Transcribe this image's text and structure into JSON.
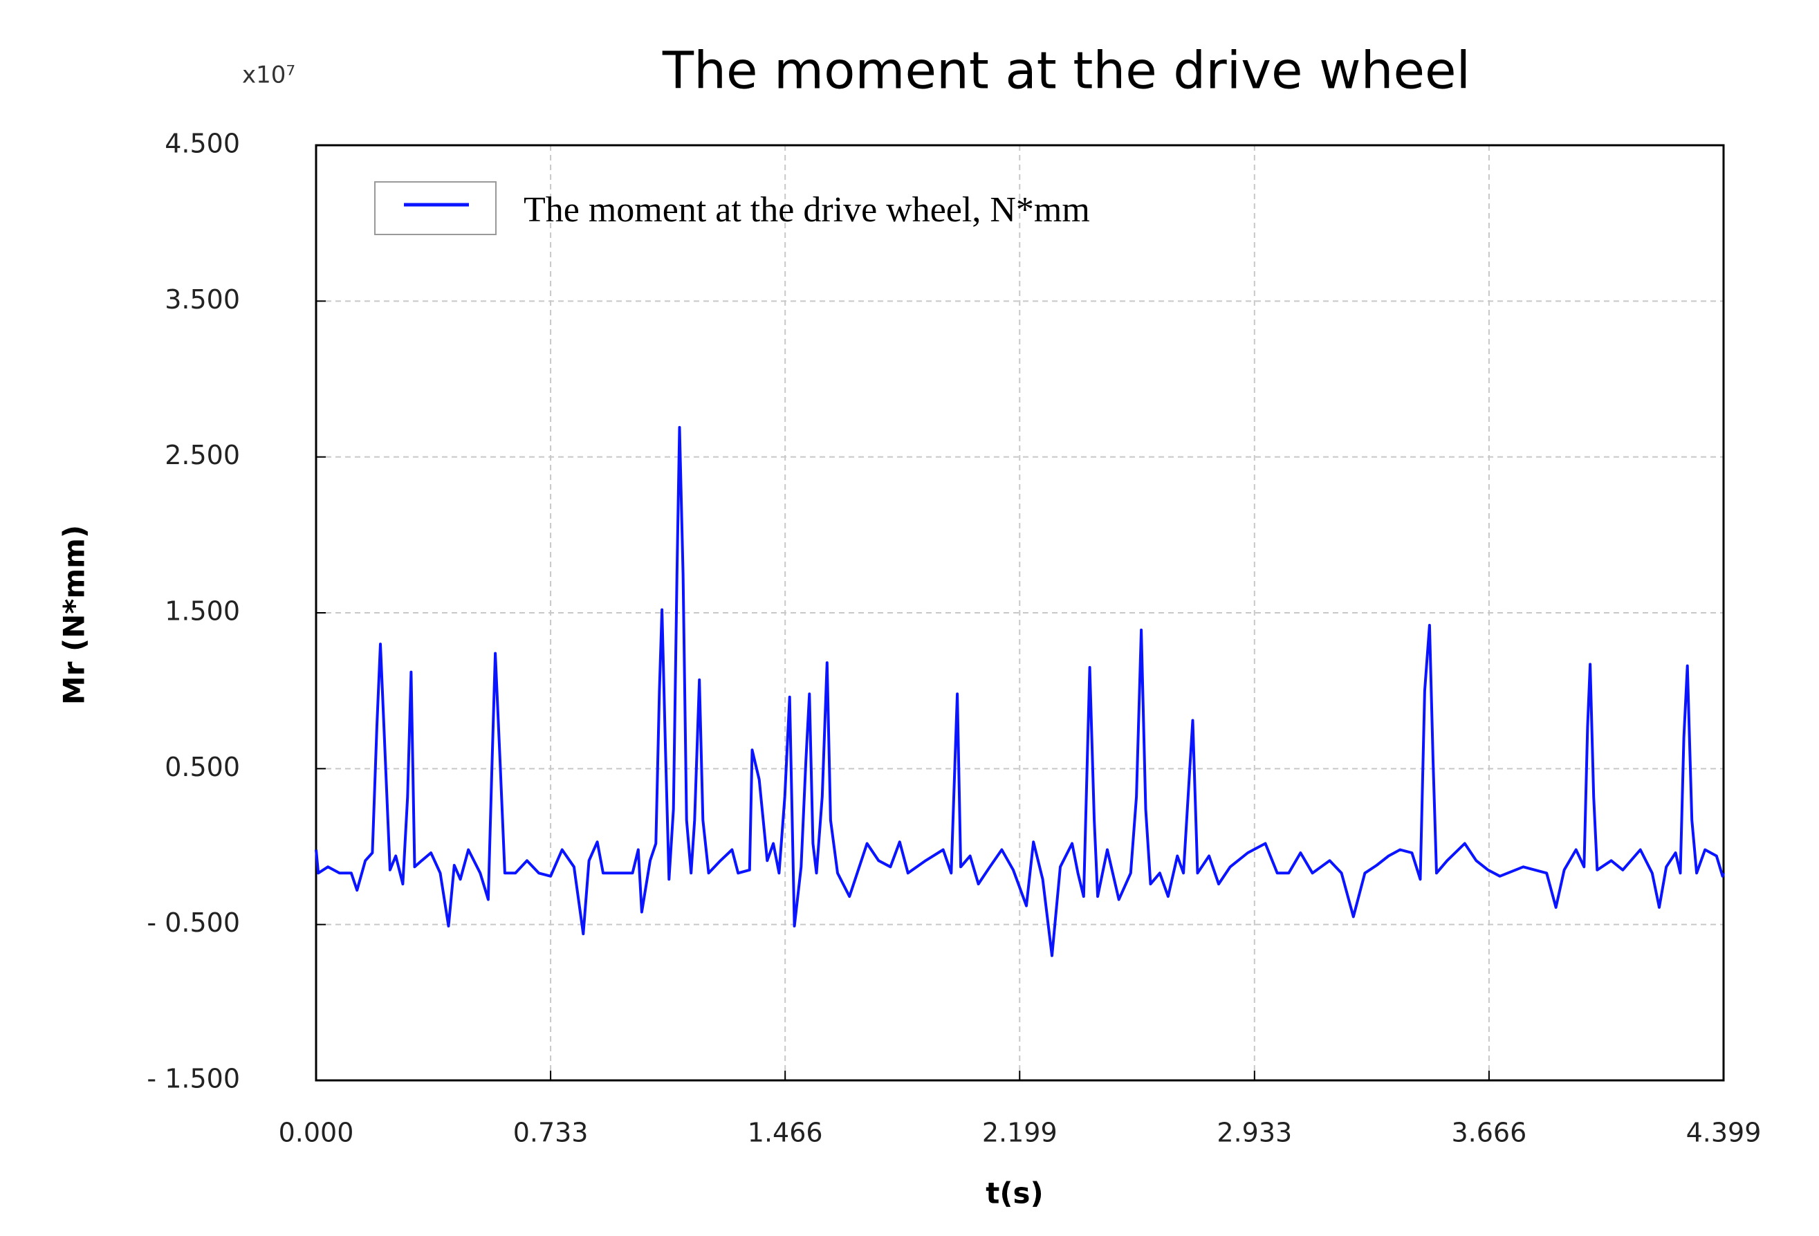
{
  "chart_data": {
    "type": "line",
    "title": "The moment at the drive wheel",
    "y_scale_label": "x10⁷",
    "x_label": "t(s)",
    "y_label": "Mr (N*mm)",
    "grid": true,
    "legend": "top-left",
    "xlim": [
      0,
      4.399
    ],
    "xticks": [
      {
        "value": 0,
        "label": "0.000"
      },
      0.733,
      1.466,
      2.199,
      2.933,
      3.666,
      4.399
    ],
    "ylim": [
      -1.5,
      4.5
    ],
    "yticks": [
      {
        "value": 4.5,
        "label": "4.500"
      },
      {
        "value": 3.5,
        "label": "3.500"
      },
      {
        "value": 2.5,
        "label": "2.500"
      },
      {
        "value": 1.5,
        "label": "1.500"
      },
      {
        "value": 0.5,
        "label": "0.500"
      },
      {
        "value": -0.5,
        "label": "- 0.500"
      },
      {
        "value": -1.5,
        "label": "- 1.500"
      }
    ],
    "series": [
      {
        "name": "The moment at the drive wheel, N*mm",
        "color": "#0a14ff",
        "x": [
          0,
          0.007,
          0.037,
          0.073,
          0.11,
          0.128,
          0.154,
          0.176,
          0.19,
          0.201,
          0.212,
          0.231,
          0.249,
          0.271,
          0.286,
          0.297,
          0.308,
          0.33,
          0.359,
          0.388,
          0.414,
          0.432,
          0.451,
          0.476,
          0.513,
          0.538,
          0.549,
          0.56,
          0.575,
          0.59,
          0.623,
          0.659,
          0.696,
          0.733,
          0.769,
          0.806,
          0.835,
          0.853,
          0.879,
          0.897,
          0.989,
          1.007,
          1.018,
          1.044,
          1.062,
          1.073,
          1.081,
          1.092,
          1.103,
          1.117,
          1.128,
          1.136,
          1.147,
          1.158,
          1.172,
          1.183,
          1.198,
          1.209,
          1.227,
          1.264,
          1.3,
          1.319,
          1.355,
          1.363,
          1.385,
          1.41,
          1.429,
          1.447,
          1.465,
          1.48,
          1.495,
          1.516,
          1.531,
          1.542,
          1.553,
          1.564,
          1.582,
          1.597,
          1.608,
          1.63,
          1.667,
          1.722,
          1.758,
          1.795,
          1.824,
          1.85,
          1.905,
          1.96,
          1.985,
          2.004,
          2.015,
          2.044,
          2.07,
          2.106,
          2.143,
          2.179,
          2.22,
          2.242,
          2.271,
          2.3,
          2.326,
          2.363,
          2.381,
          2.399,
          2.418,
          2.432,
          2.443,
          2.473,
          2.509,
          2.546,
          2.564,
          2.579,
          2.593,
          2.608,
          2.637,
          2.663,
          2.692,
          2.711,
          2.74,
          2.755,
          2.791,
          2.821,
          2.857,
          2.912,
          2.967,
          3.004,
          3.04,
          3.077,
          3.114,
          3.168,
          3.205,
          3.242,
          3.278,
          3.315,
          3.352,
          3.388,
          3.425,
          3.451,
          3.465,
          3.48,
          3.491,
          3.502,
          3.535,
          3.59,
          3.626,
          3.663,
          3.7,
          3.773,
          3.846,
          3.875,
          3.901,
          3.938,
          3.963,
          3.974,
          3.982,
          3.993,
          4.004,
          4.048,
          4.084,
          4.139,
          4.176,
          4.198,
          4.22,
          4.249,
          4.264,
          4.275,
          4.286,
          4.3,
          4.315,
          4.341,
          4.377,
          4.396,
          4.399
        ],
        "values": [
          -0.02,
          -0.17,
          -0.13,
          -0.17,
          -0.17,
          -0.28,
          -0.09,
          -0.04,
          0.77,
          1.3,
          0.77,
          -0.15,
          -0.06,
          -0.24,
          0.32,
          1.12,
          -0.13,
          -0.09,
          -0.04,
          -0.17,
          -0.51,
          -0.12,
          -0.21,
          -0.02,
          -0.17,
          -0.34,
          0.47,
          1.24,
          0.55,
          -0.17,
          -0.17,
          -0.09,
          -0.17,
          -0.19,
          -0.02,
          -0.13,
          -0.56,
          -0.09,
          0.03,
          -0.17,
          -0.17,
          -0.02,
          -0.42,
          -0.09,
          0.02,
          1.0,
          1.52,
          0.62,
          -0.21,
          0.24,
          1.75,
          2.69,
          1.75,
          0.17,
          -0.17,
          0.17,
          1.07,
          0.17,
          -0.17,
          -0.09,
          -0.02,
          -0.17,
          -0.15,
          0.62,
          0.43,
          -0.09,
          0.02,
          -0.17,
          0.32,
          0.96,
          -0.51,
          -0.13,
          0.55,
          0.98,
          0.02,
          -0.17,
          0.32,
          1.18,
          0.17,
          -0.17,
          -0.32,
          0.02,
          -0.09,
          -0.13,
          0.03,
          -0.17,
          -0.09,
          -0.02,
          -0.17,
          0.98,
          -0.13,
          -0.06,
          -0.24,
          -0.13,
          -0.02,
          -0.15,
          -0.38,
          0.03,
          -0.21,
          -0.7,
          -0.13,
          0.02,
          -0.17,
          -0.32,
          1.15,
          0.17,
          -0.32,
          -0.02,
          -0.34,
          -0.17,
          0.32,
          1.39,
          0.24,
          -0.24,
          -0.17,
          -0.32,
          -0.06,
          -0.17,
          0.81,
          -0.17,
          -0.06,
          -0.24,
          -0.13,
          -0.04,
          0.02,
          -0.17,
          -0.17,
          -0.04,
          -0.17,
          -0.09,
          -0.17,
          -0.45,
          -0.17,
          -0.12,
          -0.06,
          -0.02,
          -0.04,
          -0.21,
          1.0,
          1.42,
          0.55,
          -0.17,
          -0.09,
          0.02,
          -0.09,
          -0.15,
          -0.19,
          -0.13,
          -0.17,
          -0.39,
          -0.15,
          -0.02,
          -0.13,
          0.77,
          1.17,
          0.32,
          -0.15,
          -0.09,
          -0.15,
          -0.02,
          -0.17,
          -0.39,
          -0.13,
          -0.04,
          -0.17,
          0.7,
          1.16,
          0.17,
          -0.17,
          -0.02,
          -0.06,
          -0.19,
          -0.17
        ]
      }
    ]
  }
}
